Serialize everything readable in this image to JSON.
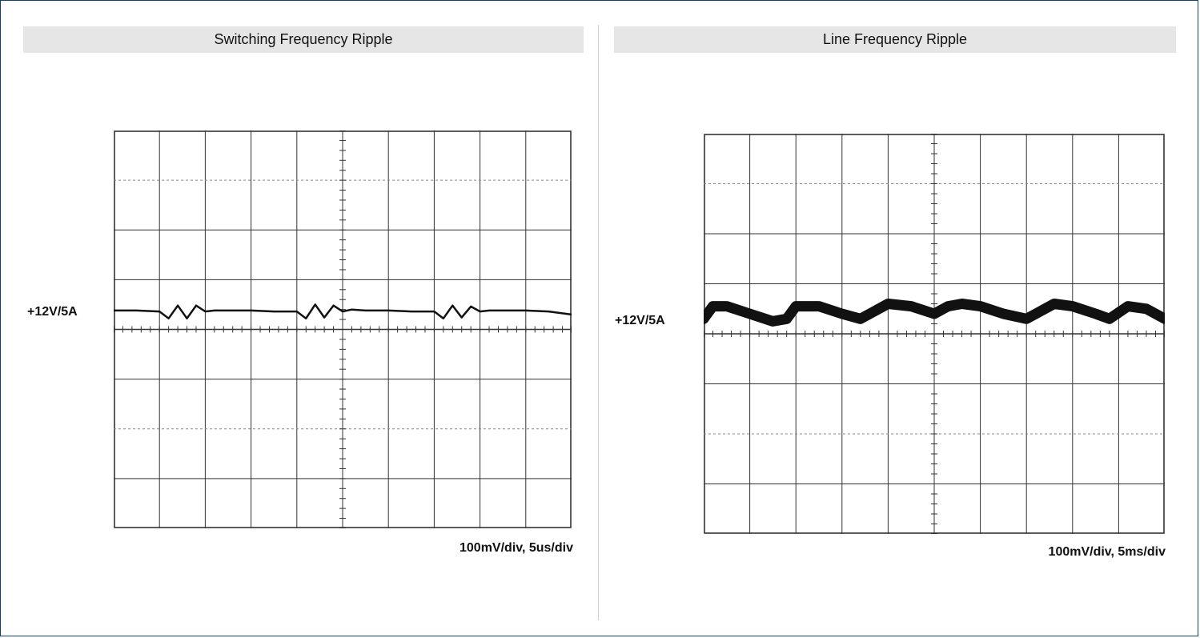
{
  "panels": [
    {
      "title": "Switching Frequency Ripple",
      "trace_label": "+12V/5A",
      "scale_text": "100mV/div,  5us/div"
    },
    {
      "title": "Line Frequency Ripple",
      "trace_label": "+12V/5A",
      "scale_text": "100mV/div,  5ms/div"
    }
  ],
  "colors": {
    "header_bg": "#e6e6e6",
    "border": "#1f3b57",
    "trace": "#111111",
    "grid": "#333333"
  },
  "chart_data": [
    {
      "type": "line",
      "title": "Switching Frequency Ripple",
      "grid": true,
      "grid_divisions": {
        "x": 10,
        "y": 8
      },
      "x_per_div": "5us",
      "y_per_div": "100mV",
      "channel": "+12V/5A",
      "series": [
        {
          "x": [
            0,
            0.5,
            1.0,
            1.2,
            1.4,
            1.6,
            1.8,
            2.0,
            2.2,
            2.5,
            3.0,
            3.5,
            4.0,
            4.2,
            4.4,
            4.6,
            4.8,
            5.0,
            5.2,
            5.5,
            6.0,
            6.5,
            7.0,
            7.2,
            7.4,
            7.6,
            7.8,
            8.0,
            8.2,
            8.5,
            9.0,
            9.5,
            10.0
          ],
          "y": [
            0.38,
            0.38,
            0.36,
            0.22,
            0.48,
            0.22,
            0.48,
            0.36,
            0.38,
            0.38,
            0.38,
            0.36,
            0.36,
            0.22,
            0.5,
            0.24,
            0.48,
            0.36,
            0.4,
            0.38,
            0.38,
            0.36,
            0.36,
            0.22,
            0.48,
            0.24,
            0.46,
            0.36,
            0.38,
            0.38,
            0.38,
            0.36,
            0.3
          ]
        }
      ]
    },
    {
      "type": "line",
      "title": "Line Frequency Ripple",
      "grid": true,
      "grid_divisions": {
        "x": 10,
        "y": 8
      },
      "x_per_div": "5ms",
      "y_per_div": "100mV",
      "channel": "+12V/5A",
      "series": [
        {
          "x": [
            0,
            0.2,
            0.5,
            1.0,
            1.5,
            1.8,
            2.0,
            2.5,
            3.0,
            3.4,
            3.7,
            4.0,
            4.5,
            5.0,
            5.3,
            5.6,
            6.0,
            6.5,
            7.0,
            7.3,
            7.6,
            8.0,
            8.5,
            8.8,
            9.2,
            9.6,
            10.0
          ],
          "y": [
            0.3,
            0.55,
            0.55,
            0.4,
            0.25,
            0.3,
            0.55,
            0.55,
            0.4,
            0.3,
            0.45,
            0.6,
            0.55,
            0.4,
            0.55,
            0.6,
            0.55,
            0.4,
            0.3,
            0.45,
            0.6,
            0.55,
            0.4,
            0.3,
            0.55,
            0.5,
            0.3
          ]
        }
      ]
    }
  ]
}
